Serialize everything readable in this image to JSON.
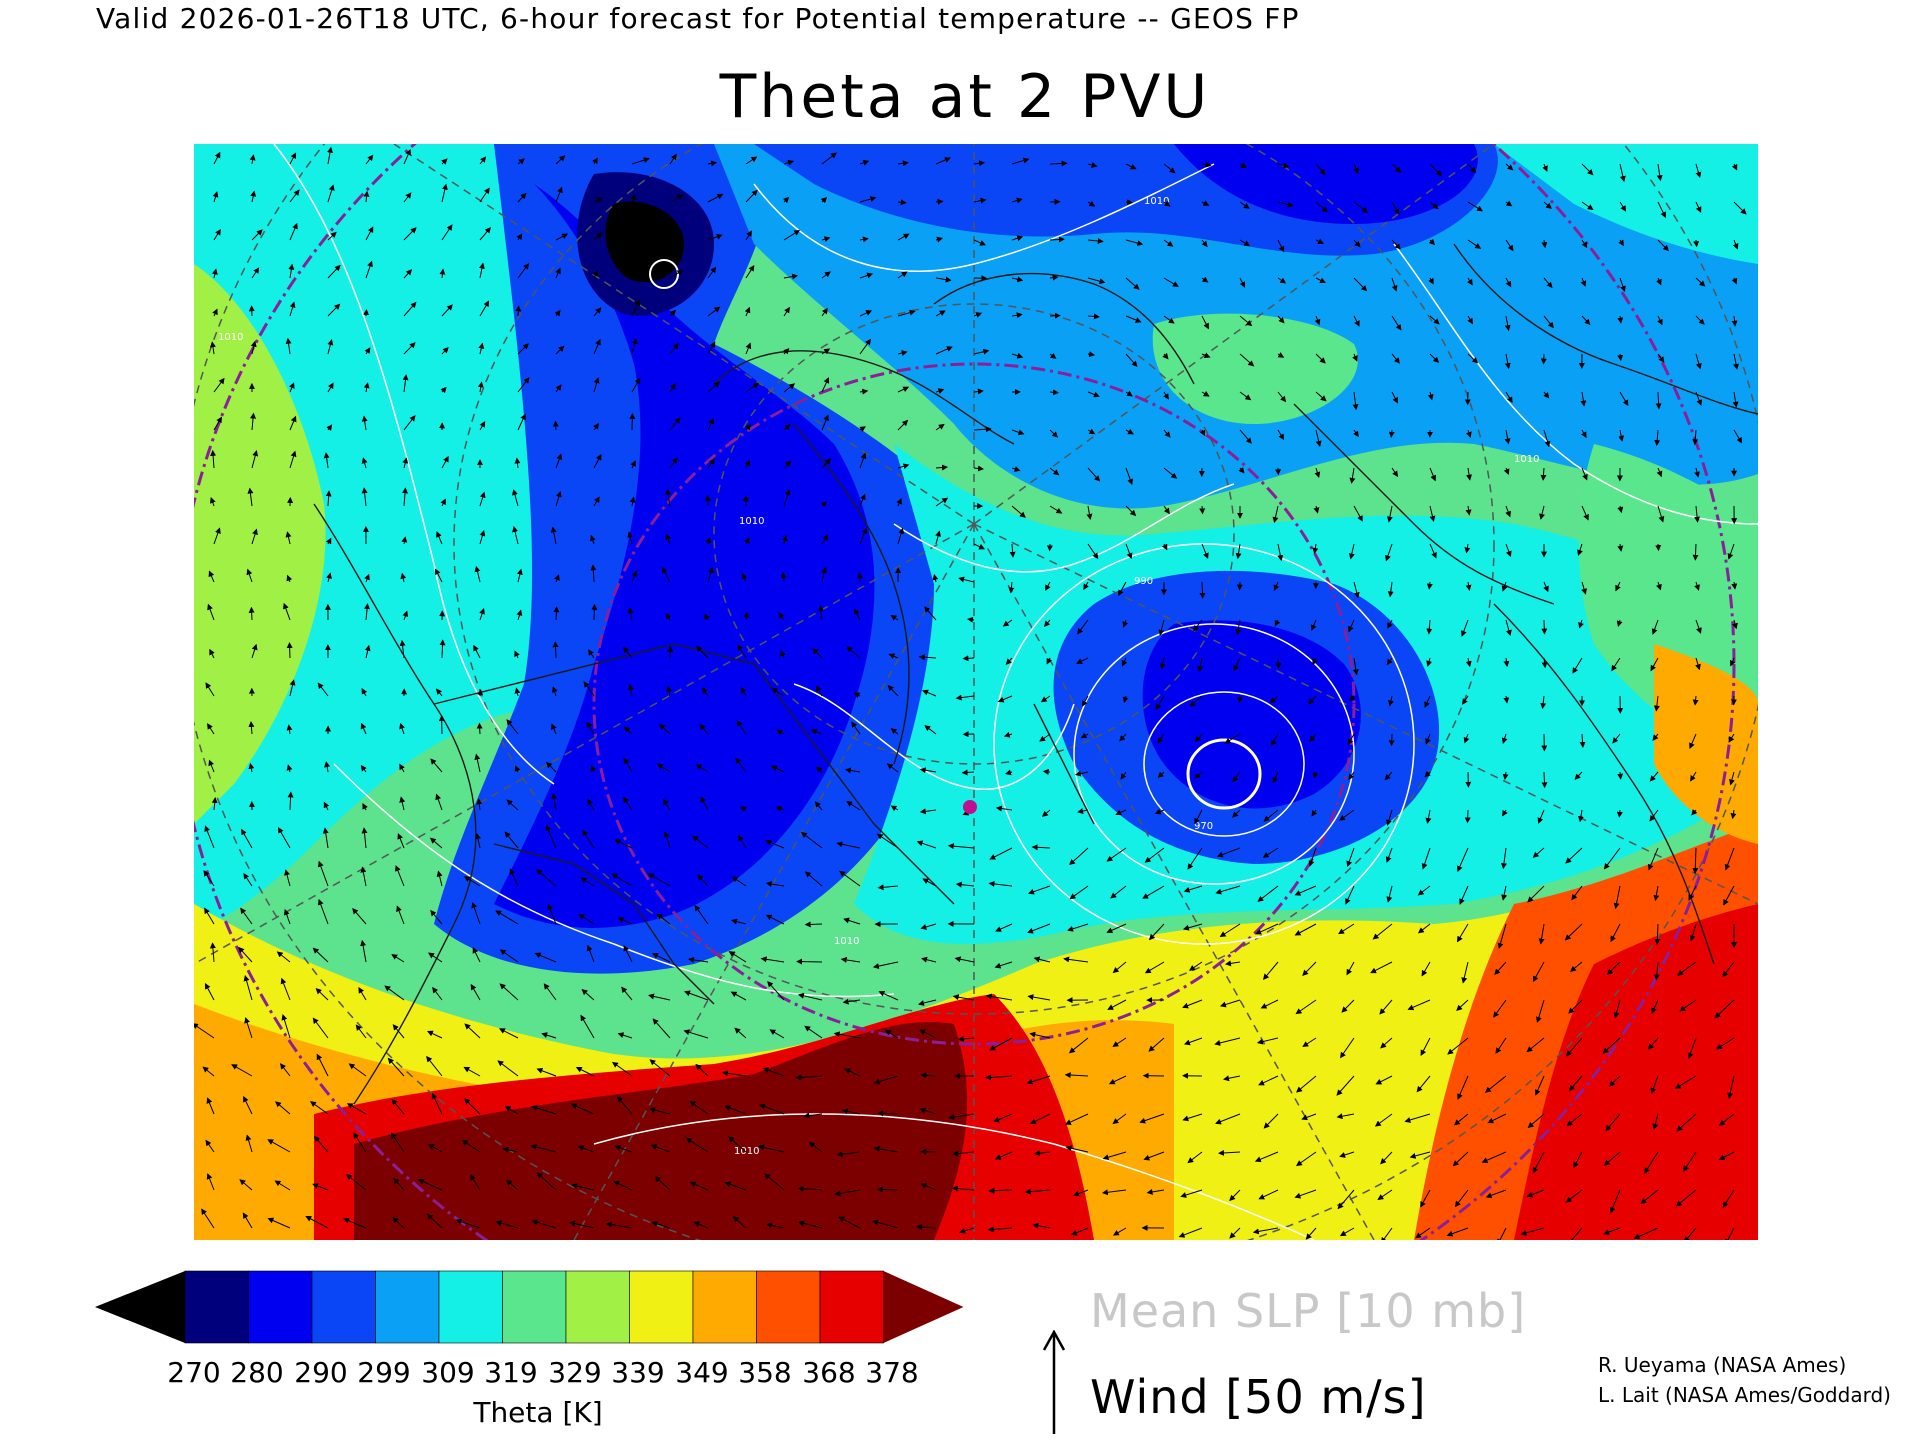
{
  "header": {
    "valid_line": "Valid 2026-01-26T18 UTC, 6-hour forecast for Potential temperature -- GEOS FP",
    "title": "Theta at 2 PVU"
  },
  "map": {
    "projection": "polar stereographic",
    "isobar_labels": [
      "1010",
      "1010",
      "1010",
      "1010",
      "970",
      "990",
      "1010",
      "1010"
    ]
  },
  "colorbar": {
    "levels": [
      "270",
      "280",
      "290",
      "299",
      "309",
      "319",
      "329",
      "339",
      "349",
      "358",
      "368",
      "378"
    ],
    "colors": [
      "#000000",
      "#00007d",
      "#0000f0",
      "#0a46f5",
      "#0aa0f5",
      "#14f0e6",
      "#5ae68c",
      "#a0f046",
      "#f0f014",
      "#ffaa00",
      "#ff5000",
      "#e60000",
      "#7d0000"
    ],
    "title": "Theta [K]"
  },
  "legend": {
    "slp": "Mean SLP [10 mb]",
    "wind": "Wind [50 m/s]"
  },
  "credits": {
    "line1": "R. Ueyama (NASA Ames)",
    "line2": "L. Lait (NASA Ames/Goddard)"
  }
}
